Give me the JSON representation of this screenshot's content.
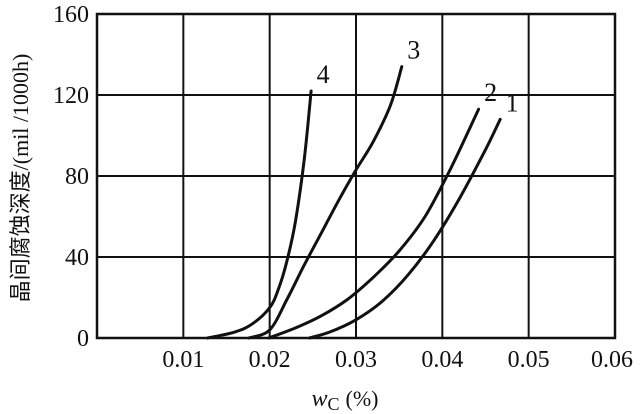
{
  "chart_data": {
    "type": "line",
    "title": "",
    "xlabel": "w",
    "xlabel_subscript": "C",
    "xlabel_unit": "(%)",
    "ylabel": "晶间腐蚀深度/(mil /1000h)",
    "xlim": [
      0,
      0.06
    ],
    "ylim": [
      0,
      160
    ],
    "x_ticks": [
      "0.01",
      "0.02",
      "0.03",
      "0.04",
      "0.05",
      "0.06"
    ],
    "x_tick_values": [
      0.01,
      0.02,
      0.03,
      0.04,
      0.05,
      0.06
    ],
    "y_ticks": [
      "0",
      "40",
      "80",
      "120",
      "160"
    ],
    "y_tick_values": [
      0,
      40,
      80,
      120,
      160
    ],
    "grid": true,
    "series": [
      {
        "name": "1",
        "x": [
          0.0246,
          0.027,
          0.03,
          0.033,
          0.036,
          0.039,
          0.042,
          0.045,
          0.0467
        ],
        "y": [
          0,
          3,
          9,
          18,
          31,
          48,
          69,
          93,
          108
        ]
      },
      {
        "name": "2",
        "x": [
          0.0199,
          0.023,
          0.026,
          0.029,
          0.032,
          0.035,
          0.038,
          0.041,
          0.0442
        ],
        "y": [
          0,
          5,
          11,
          19,
          30,
          43,
          60,
          84,
          113
        ]
      },
      {
        "name": "3",
        "x": [
          0.0176,
          0.02,
          0.022,
          0.024,
          0.026,
          0.028,
          0.03,
          0.032,
          0.034,
          0.0353
        ],
        "y": [
          0,
          4,
          19,
          36,
          52,
          68,
          83,
          97,
          115,
          134
        ]
      },
      {
        "name": "4",
        "x": [
          0.0128,
          0.016,
          0.018,
          0.02,
          0.021,
          0.022,
          0.023,
          0.024,
          0.0248
        ],
        "y": [
          0,
          3,
          7,
          15,
          24,
          38,
          58,
          88,
          122
        ]
      }
    ]
  }
}
